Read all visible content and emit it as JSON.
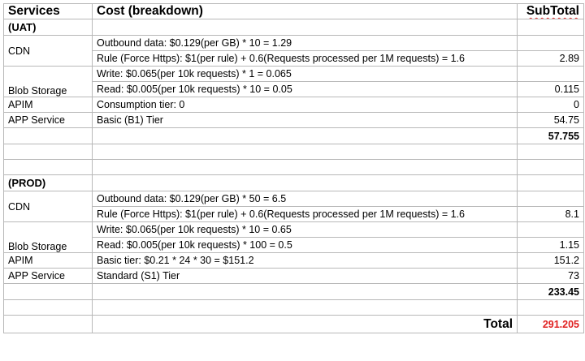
{
  "header": {
    "services": "Services",
    "cost": "Cost (breakdown)",
    "subtotal": "SubTotal"
  },
  "uat": {
    "title": "(UAT)",
    "cdn_label": "CDN",
    "cdn_outbound": "Outbound data: $0.129(per GB) * 10 = 1.29",
    "cdn_rule": "Rule (Force Https): $1(per rule) + 0.6(Requests processed per 1M requests) = 1.6",
    "cdn_sub": "2.89",
    "blob_label": "Blob Storage",
    "blob_write": "Write: $0.065(per 10k requests) * 1 = 0.065",
    "blob_read": "Read: $0.005(per 10k requests) * 10 = 0.05",
    "blob_sub": "0.115",
    "apim_label": "APIM",
    "apim_cost": "Consumption tier: 0",
    "apim_sub": "0",
    "app_label": "APP Service",
    "app_cost": "Basic (B1) Tier",
    "app_sub": "54.75",
    "total": "57.755"
  },
  "prod": {
    "title": "(PROD)",
    "cdn_label": "CDN",
    "cdn_outbound": "Outbound data: $0.129(per GB) * 50 = 6.5",
    "cdn_rule": "Rule (Force Https): $1(per rule) + 0.6(Requests processed per 1M requests) = 1.6",
    "cdn_sub": "8.1",
    "blob_label": "Blob Storage",
    "blob_write": "Write: $0.065(per 10k requests) * 10 = 0.65",
    "blob_read": "Read: $0.005(per 10k requests) * 100 = 0.5",
    "blob_sub": "1.15",
    "apim_label": "APIM",
    "apim_cost": "Basic tier: $0.21 * 24 * 30 = $151.2",
    "apim_sub": "151.2",
    "app_label": "APP Service",
    "app_cost": "Standard (S1) Tier",
    "app_sub": "73",
    "total": "233.45"
  },
  "footer": {
    "total_label": "Total",
    "total_value": "291.205"
  },
  "colors": {
    "total_value": "#e02020",
    "grid": "#b8b8b8"
  }
}
